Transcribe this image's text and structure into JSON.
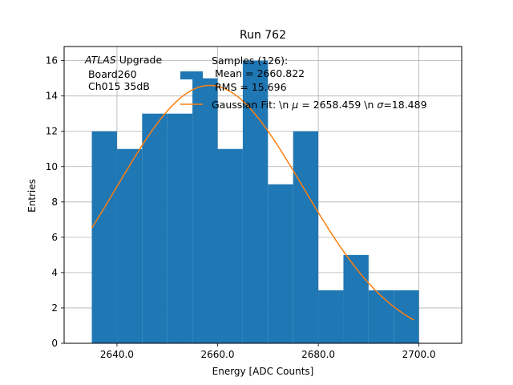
{
  "chart_data": {
    "type": "bar",
    "title": "Run 762",
    "xlabel": "Energy [ADC Counts]",
    "ylabel": "Entries",
    "xlim": [
      2629.5,
      2708.5
    ],
    "ylim": [
      0,
      16.8
    ],
    "xticks": [
      2640.0,
      2660.0,
      2680.0,
      2700.0
    ],
    "xtick_labels": [
      "2640.0",
      "2660.0",
      "2680.0",
      "2700.0"
    ],
    "yticks": [
      0,
      2,
      4,
      6,
      8,
      10,
      12,
      14,
      16
    ],
    "ytick_labels": [
      "0",
      "2",
      "4",
      "6",
      "8",
      "10",
      "12",
      "14",
      "16"
    ],
    "grid": true,
    "bin_edges": [
      2635,
      2640,
      2645,
      2650,
      2655,
      2660,
      2665,
      2670,
      2675,
      2680,
      2685,
      2690,
      2695,
      2700
    ],
    "values": [
      12,
      11,
      13,
      13,
      15,
      11,
      16,
      9,
      12,
      3,
      5,
      3,
      3
    ],
    "bar_color": "#1f77b4",
    "fit": {
      "function": "gaussian",
      "amplitude": 14.6,
      "mu": 2658.459,
      "sigma": 18.489,
      "x_range": [
        2635,
        2699
      ],
      "color": "#ff7f0e"
    },
    "annotation": {
      "italic": "ATLAS",
      "rest": " Upgrade",
      "line2": " Board260",
      "line3": " Ch015 35dB"
    },
    "legend": {
      "placement": "top-center",
      "hist_lines": [
        "Samples (126):",
        " Mean = 2660.822",
        " RMS = 15.696"
      ],
      "fit_label": "Gaussian Fit: \\n μ = 2658.459 \\n σ=18.489",
      "fit_label_parts": {
        "prefix": "Gaussian Fit: \\n ",
        "mu_symbol": "μ",
        "mu_text": " = 2658.459 \\n ",
        "sigma_symbol": "σ",
        "sigma_text": "=18.489"
      }
    }
  }
}
